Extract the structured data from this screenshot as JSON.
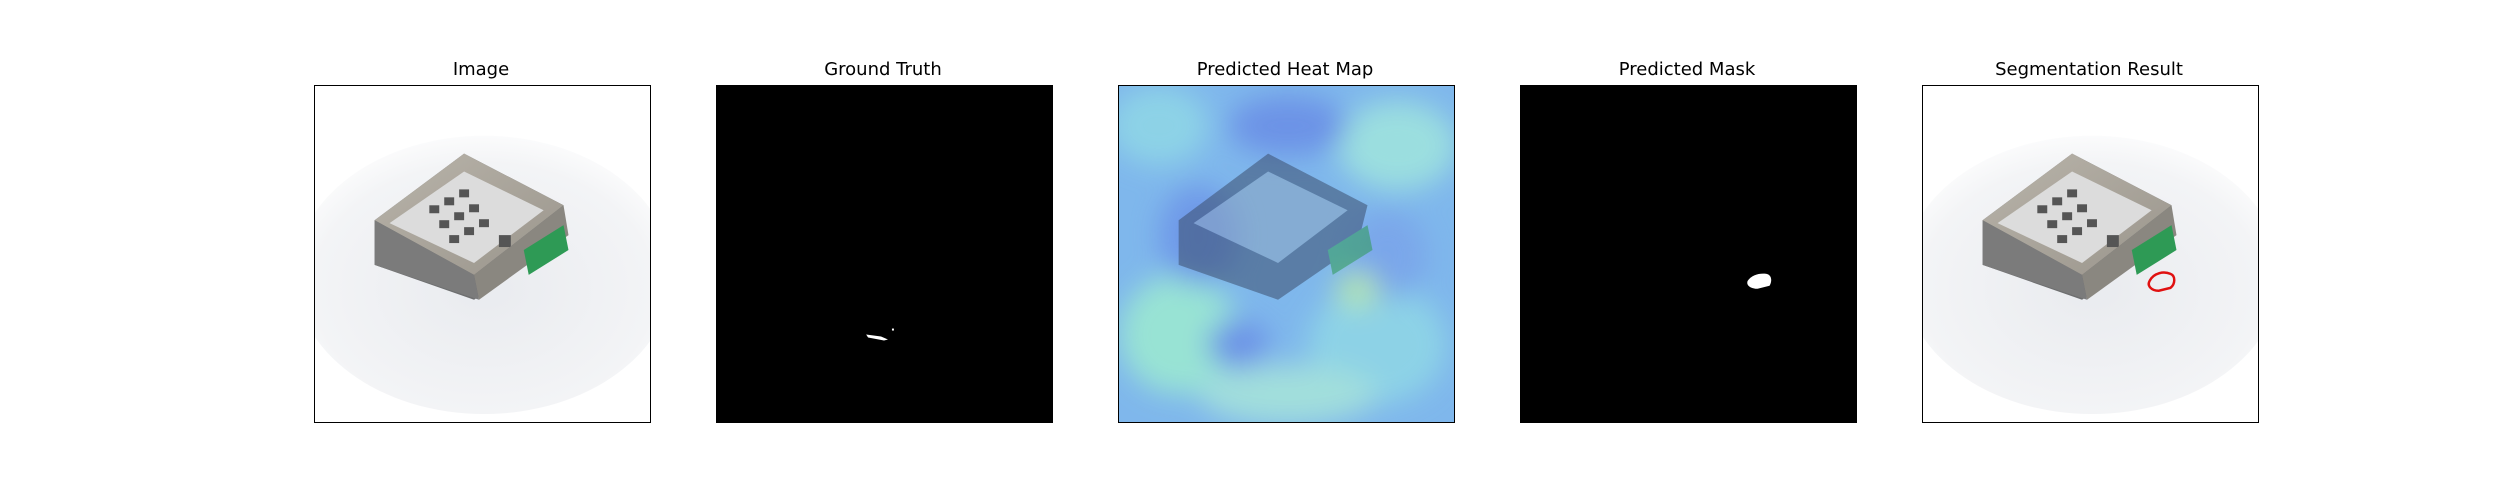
{
  "panels": [
    {
      "title": "Image",
      "content": "photo of a grey electronic module with green connector on white background"
    },
    {
      "title": "Ground Truth",
      "content": "black mask with small white defect streak"
    },
    {
      "title": "Predicted Heat Map",
      "content": "blue-cyan heat map overlaid on module photo"
    },
    {
      "title": "Predicted Mask",
      "content": "black mask with small white predicted blob"
    },
    {
      "title": "Segmentation Result",
      "content": "module photo with red contour around predicted region"
    }
  ],
  "colors": {
    "mask_background": "#000000",
    "mask_foreground": "#ffffff",
    "contour": "#e01010",
    "heat_low": "#5aa0f0",
    "heat_high": "#9be8d2"
  }
}
